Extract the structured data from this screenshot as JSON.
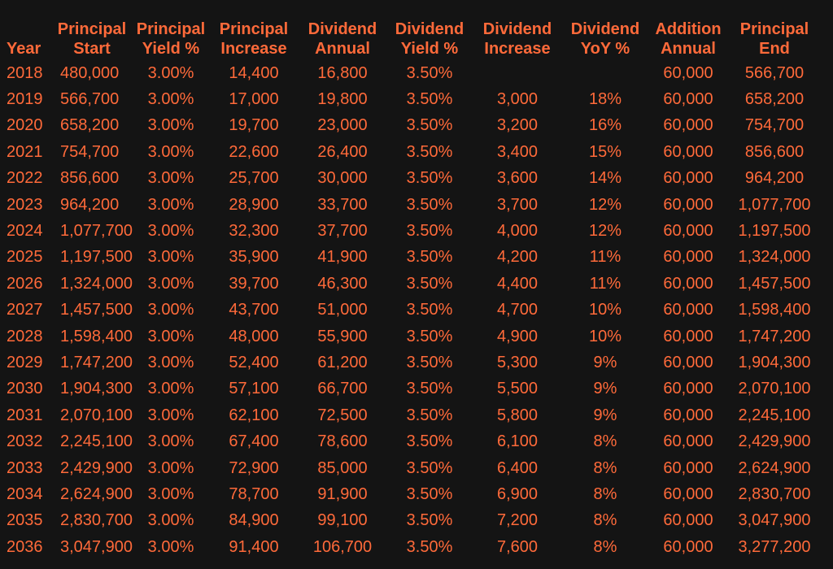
{
  "table": {
    "headers": [
      {
        "line1": "",
        "line2": "Year"
      },
      {
        "line1": "Principal",
        "line2": "Start"
      },
      {
        "line1": "Principal",
        "line2": "Yield %"
      },
      {
        "line1": "Principal",
        "line2": "Increase"
      },
      {
        "line1": "Dividend",
        "line2": "Annual"
      },
      {
        "line1": "Dividend",
        "line2": "Yield %"
      },
      {
        "line1": "Dividend",
        "line2": "Increase"
      },
      {
        "line1": "Dividend",
        "line2": "YoY %"
      },
      {
        "line1": "Addition",
        "line2": "Annual"
      },
      {
        "line1": "Principal",
        "line2": "End"
      }
    ],
    "rows": [
      [
        "2018",
        "480,000",
        "3.00%",
        "14,400",
        "16,800",
        "3.50%",
        "",
        "",
        "60,000",
        "566,700"
      ],
      [
        "2019",
        "566,700",
        "3.00%",
        "17,000",
        "19,800",
        "3.50%",
        "3,000",
        "18%",
        "60,000",
        "658,200"
      ],
      [
        "2020",
        "658,200",
        "3.00%",
        "19,700",
        "23,000",
        "3.50%",
        "3,200",
        "16%",
        "60,000",
        "754,700"
      ],
      [
        "2021",
        "754,700",
        "3.00%",
        "22,600",
        "26,400",
        "3.50%",
        "3,400",
        "15%",
        "60,000",
        "856,600"
      ],
      [
        "2022",
        "856,600",
        "3.00%",
        "25,700",
        "30,000",
        "3.50%",
        "3,600",
        "14%",
        "60,000",
        "964,200"
      ],
      [
        "2023",
        "964,200",
        "3.00%",
        "28,900",
        "33,700",
        "3.50%",
        "3,700",
        "12%",
        "60,000",
        "1,077,700"
      ],
      [
        "2024",
        "1,077,700",
        "3.00%",
        "32,300",
        "37,700",
        "3.50%",
        "4,000",
        "12%",
        "60,000",
        "1,197,500"
      ],
      [
        "2025",
        "1,197,500",
        "3.00%",
        "35,900",
        "41,900",
        "3.50%",
        "4,200",
        "11%",
        "60,000",
        "1,324,000"
      ],
      [
        "2026",
        "1,324,000",
        "3.00%",
        "39,700",
        "46,300",
        "3.50%",
        "4,400",
        "11%",
        "60,000",
        "1,457,500"
      ],
      [
        "2027",
        "1,457,500",
        "3.00%",
        "43,700",
        "51,000",
        "3.50%",
        "4,700",
        "10%",
        "60,000",
        "1,598,400"
      ],
      [
        "2028",
        "1,598,400",
        "3.00%",
        "48,000",
        "55,900",
        "3.50%",
        "4,900",
        "10%",
        "60,000",
        "1,747,200"
      ],
      [
        "2029",
        "1,747,200",
        "3.00%",
        "52,400",
        "61,200",
        "3.50%",
        "5,300",
        "9%",
        "60,000",
        "1,904,300"
      ],
      [
        "2030",
        "1,904,300",
        "3.00%",
        "57,100",
        "66,700",
        "3.50%",
        "5,500",
        "9%",
        "60,000",
        "2,070,100"
      ],
      [
        "2031",
        "2,070,100",
        "3.00%",
        "62,100",
        "72,500",
        "3.50%",
        "5,800",
        "9%",
        "60,000",
        "2,245,100"
      ],
      [
        "2032",
        "2,245,100",
        "3.00%",
        "67,400",
        "78,600",
        "3.50%",
        "6,100",
        "8%",
        "60,000",
        "2,429,900"
      ],
      [
        "2033",
        "2,429,900",
        "3.00%",
        "72,900",
        "85,000",
        "3.50%",
        "6,400",
        "8%",
        "60,000",
        "2,624,900"
      ],
      [
        "2034",
        "2,624,900",
        "3.00%",
        "78,700",
        "91,900",
        "3.50%",
        "6,900",
        "8%",
        "60,000",
        "2,830,700"
      ],
      [
        "2035",
        "2,830,700",
        "3.00%",
        "84,900",
        "99,100",
        "3.50%",
        "7,200",
        "8%",
        "60,000",
        "3,047,900"
      ],
      [
        "2036",
        "3,047,900",
        "3.00%",
        "91,400",
        "106,700",
        "3.50%",
        "7,600",
        "8%",
        "60,000",
        "3,277,200"
      ]
    ]
  },
  "colors": {
    "background": "#141414",
    "text": "#ff6a3a"
  }
}
